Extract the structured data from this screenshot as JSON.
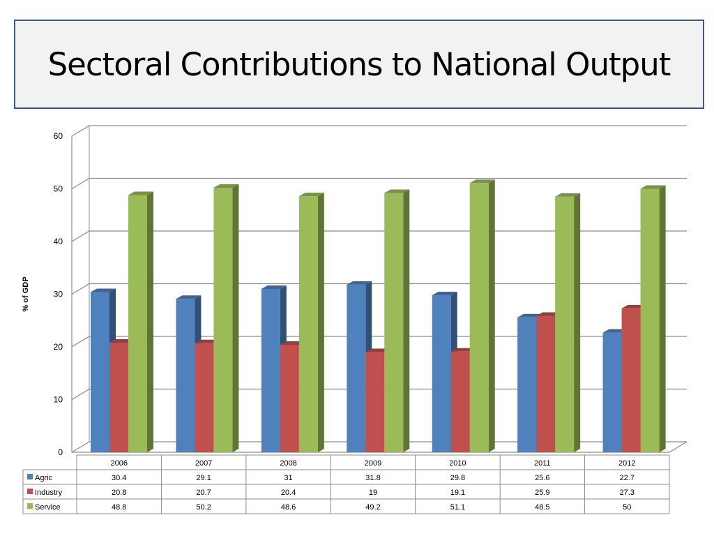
{
  "header": {
    "title": "Sectoral Contributions to National Output"
  },
  "chart_data": {
    "type": "bar",
    "title": "Sectoral Contributions to National Output",
    "xlabel": "",
    "ylabel": "% of GDP",
    "ylim": [
      0,
      60
    ],
    "yticks": [
      0,
      10,
      20,
      30,
      40,
      50,
      60
    ],
    "grid": true,
    "legend": "data table",
    "categories": [
      "2006",
      "2007",
      "2008",
      "2009",
      "2010",
      "2011",
      "2012"
    ],
    "series": [
      {
        "name": "Agric",
        "color": "#4f81bd",
        "values": [
          30.4,
          29.1,
          31,
          31.8,
          29.8,
          25.6,
          22.7
        ]
      },
      {
        "name": "Industry",
        "color": "#c0504d",
        "values": [
          20.8,
          20.7,
          20.4,
          19,
          19.1,
          25.9,
          27.3
        ]
      },
      {
        "name": "Service",
        "color": "#9bbb59",
        "values": [
          48.8,
          50.2,
          48.6,
          49.2,
          51.1,
          48.5,
          50
        ]
      }
    ]
  }
}
